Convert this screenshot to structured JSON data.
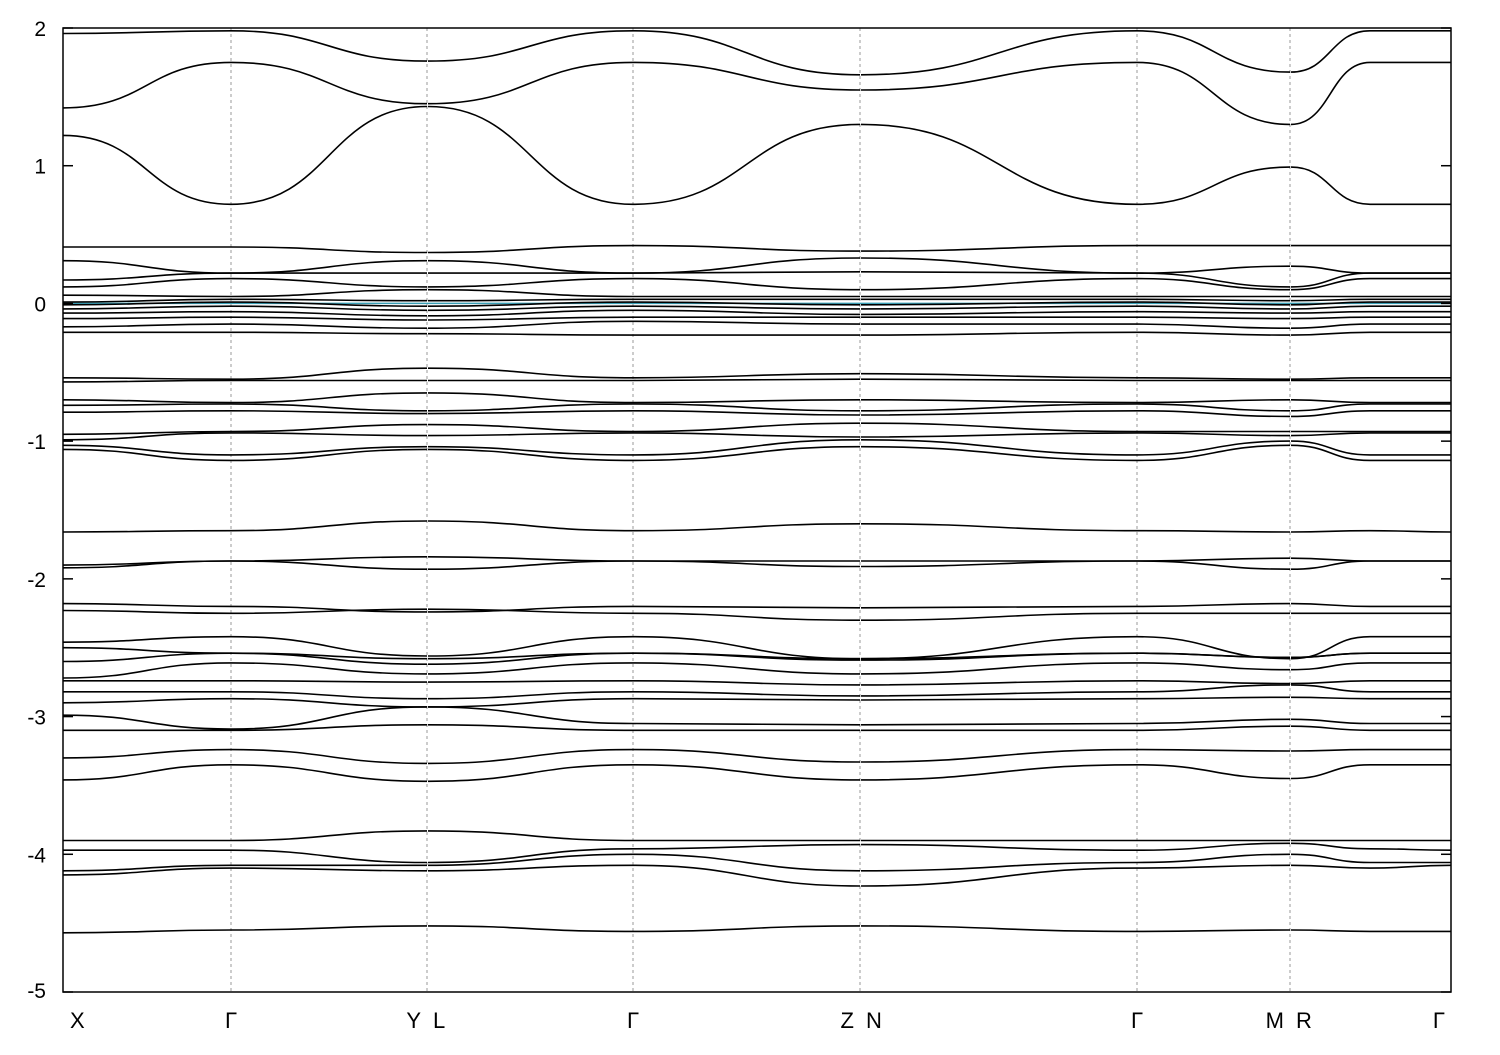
{
  "chart_data": {
    "type": "line",
    "title": "",
    "xlabel": "",
    "ylabel": "",
    "ylim": [
      -5,
      2
    ],
    "yticks": [
      2,
      1,
      0,
      -1,
      -2,
      -3,
      -4,
      -5
    ],
    "grid": "vertical dashed lines at high-symmetry points",
    "x_segments": [
      {
        "from": "X",
        "to": "Y",
        "x": [
          0,
          1
        ]
      },
      {
        "from": "L",
        "to": "Z",
        "x": [
          1,
          2
        ]
      },
      {
        "from": "N",
        "to": "M",
        "x": [
          2,
          3
        ]
      },
      {
        "from": "R",
        "to": "Γ",
        "x": [
          3,
          4
        ]
      }
    ],
    "gamma_positions": [
      0.5,
      1.5,
      2.5,
      4
    ],
    "high_symmetry_labels": [
      {
        "label": "X",
        "x": 0
      },
      {
        "label": "Γ",
        "x": 0.5
      },
      {
        "label": "Y",
        "x": 1
      },
      {
        "label": "L",
        "x": 1
      },
      {
        "label": "Γ",
        "x": 1.5
      },
      {
        "label": "Z",
        "x": 2
      },
      {
        "label": "N",
        "x": 2
      },
      {
        "label": "Γ",
        "x": 2.5
      },
      {
        "label": "M",
        "x": 3
      },
      {
        "label": "R",
        "x": 3
      },
      {
        "label": "Γ",
        "x": 4
      }
    ],
    "fermi_level": {
      "y": 0,
      "color": "#3a9fb5"
    },
    "bands": [
      {
        "name": "b1",
        "x": [
          0,
          0.5,
          1,
          1.5,
          2,
          2.5,
          3,
          3.5,
          4
        ],
        "y": [
          -4.57,
          -4.55,
          -4.52,
          -4.56,
          -4.52,
          -4.56,
          -4.55,
          -4.56,
          -4.56
        ]
      },
      {
        "name": "b2",
        "x": [
          0,
          0.5,
          1,
          1.5,
          2,
          2.5,
          3,
          3.5,
          4
        ],
        "y": [
          -4.15,
          -4.1,
          -4.12,
          -4.08,
          -4.23,
          -4.1,
          -4.08,
          -4.1,
          -4.08
        ]
      },
      {
        "name": "b3",
        "x": [
          0,
          0.5,
          1,
          1.5,
          2,
          2.5,
          3,
          3.5,
          4
        ],
        "y": [
          -4.12,
          -4.08,
          -4.08,
          -4.0,
          -4.12,
          -4.06,
          -4.0,
          -4.06,
          -4.06
        ]
      },
      {
        "name": "b4",
        "x": [
          0,
          0.5,
          1,
          1.5,
          2,
          2.5,
          3,
          3.5,
          4
        ],
        "y": [
          -3.97,
          -3.97,
          -4.06,
          -3.96,
          -3.93,
          -3.97,
          -3.92,
          -3.96,
          -3.97
        ]
      },
      {
        "name": "b5",
        "x": [
          0,
          0.5,
          1,
          1.5,
          2,
          2.5,
          3,
          3.5,
          4
        ],
        "y": [
          -3.9,
          -3.9,
          -3.83,
          -3.9,
          -3.9,
          -3.9,
          -3.9,
          -3.9,
          -3.9
        ]
      },
      {
        "name": "b6",
        "x": [
          0,
          0.5,
          1,
          1.5,
          2,
          2.5,
          3,
          3.5,
          4
        ],
        "y": [
          -3.46,
          -3.35,
          -3.47,
          -3.35,
          -3.46,
          -3.35,
          -3.45,
          -3.35,
          -3.35
        ]
      },
      {
        "name": "b7",
        "x": [
          0,
          0.5,
          1,
          1.5,
          2,
          2.5,
          3,
          3.5,
          4
        ],
        "y": [
          -3.3,
          -3.24,
          -3.34,
          -3.24,
          -3.33,
          -3.24,
          -3.25,
          -3.24,
          -3.24
        ]
      },
      {
        "name": "b8",
        "x": [
          0,
          0.5,
          1,
          1.5,
          2,
          2.5,
          3,
          3.5,
          4
        ],
        "y": [
          -3.1,
          -3.1,
          -3.06,
          -3.1,
          -3.1,
          -3.1,
          -3.07,
          -3.1,
          -3.1
        ]
      },
      {
        "name": "b9",
        "x": [
          0,
          0.5,
          1,
          1.5,
          2,
          2.5,
          3,
          3.5,
          4
        ],
        "y": [
          -2.99,
          -3.09,
          -2.93,
          -3.05,
          -3.06,
          -3.05,
          -3.02,
          -3.05,
          -3.05
        ]
      },
      {
        "name": "b10",
        "x": [
          0,
          0.5,
          1,
          1.5,
          2,
          2.5,
          3,
          3.5,
          4
        ],
        "y": [
          -2.9,
          -2.87,
          -2.93,
          -2.87,
          -2.88,
          -2.87,
          -2.86,
          -2.87,
          -2.87
        ]
      },
      {
        "name": "b11",
        "x": [
          0,
          0.5,
          1,
          1.5,
          2,
          2.5,
          3,
          3.5,
          4
        ],
        "y": [
          -2.82,
          -2.82,
          -2.87,
          -2.82,
          -2.85,
          -2.82,
          -2.77,
          -2.82,
          -2.82
        ]
      },
      {
        "name": "b12",
        "x": [
          0,
          0.5,
          1,
          1.5,
          2,
          2.5,
          3,
          3.5,
          4
        ],
        "y": [
          -2.74,
          -2.74,
          -2.75,
          -2.74,
          -2.77,
          -2.74,
          -2.76,
          -2.74,
          -2.74
        ]
      },
      {
        "name": "b13",
        "x": [
          0,
          0.5,
          1,
          1.5,
          2,
          2.5,
          3,
          3.5,
          4
        ],
        "y": [
          -2.72,
          -2.61,
          -2.69,
          -2.61,
          -2.69,
          -2.61,
          -2.66,
          -2.61,
          -2.61
        ]
      },
      {
        "name": "b14",
        "x": [
          0,
          0.5,
          1,
          1.5,
          2,
          2.5,
          3,
          3.5,
          4
        ],
        "y": [
          -2.6,
          -2.54,
          -2.62,
          -2.54,
          -2.58,
          -2.54,
          -2.57,
          -2.54,
          -2.54
        ]
      },
      {
        "name": "b15",
        "x": [
          0,
          0.5,
          1,
          1.5,
          2,
          2.5,
          3,
          3.5,
          4
        ],
        "y": [
          -2.5,
          -2.54,
          -2.58,
          -2.54,
          -2.59,
          -2.54,
          -2.57,
          -2.54,
          -2.54
        ]
      },
      {
        "name": "b16",
        "x": [
          0,
          0.5,
          1,
          1.5,
          2,
          2.5,
          3,
          3.5,
          4
        ],
        "y": [
          -2.46,
          -2.42,
          -2.56,
          -2.42,
          -2.58,
          -2.42,
          -2.58,
          -2.42,
          -2.42
        ]
      },
      {
        "name": "b17",
        "x": [
          0,
          0.5,
          1,
          1.5,
          2,
          2.5,
          3,
          3.5,
          4
        ],
        "y": [
          -2.23,
          -2.25,
          -2.22,
          -2.25,
          -2.3,
          -2.25,
          -2.25,
          -2.25,
          -2.25
        ]
      },
      {
        "name": "b18",
        "x": [
          0,
          0.5,
          1,
          1.5,
          2,
          2.5,
          3,
          3.5,
          4
        ],
        "y": [
          -2.18,
          -2.2,
          -2.24,
          -2.2,
          -2.21,
          -2.2,
          -2.18,
          -2.2,
          -2.2
        ]
      },
      {
        "name": "b19",
        "x": [
          0,
          0.5,
          1,
          1.5,
          2,
          2.5,
          3,
          3.5,
          4
        ],
        "y": [
          -1.92,
          -1.87,
          -1.93,
          -1.87,
          -1.91,
          -1.87,
          -1.93,
          -1.87,
          -1.87
        ]
      },
      {
        "name": "b20",
        "x": [
          0,
          0.5,
          1,
          1.5,
          2,
          2.5,
          3,
          3.5,
          4
        ],
        "y": [
          -1.9,
          -1.87,
          -1.84,
          -1.87,
          -1.87,
          -1.87,
          -1.85,
          -1.87,
          -1.87
        ]
      },
      {
        "name": "b21",
        "x": [
          0,
          0.5,
          1,
          1.5,
          2,
          2.5,
          3,
          3.5,
          4
        ],
        "y": [
          -1.66,
          -1.65,
          -1.58,
          -1.65,
          -1.6,
          -1.65,
          -1.66,
          -1.65,
          -1.66
        ]
      },
      {
        "name": "b22",
        "x": [
          0,
          0.5,
          1,
          1.5,
          2,
          2.5,
          3,
          3.5,
          4
        ],
        "y": [
          -1.06,
          -1.14,
          -1.06,
          -1.14,
          -1.04,
          -1.14,
          -1.03,
          -1.14,
          -1.14
        ]
      },
      {
        "name": "b23",
        "x": [
          0,
          0.5,
          1,
          1.5,
          2,
          2.5,
          3,
          3.5,
          4
        ],
        "y": [
          -1.03,
          -1.1,
          -1.04,
          -1.1,
          -0.99,
          -1.1,
          -1.0,
          -1.1,
          -1.1
        ]
      },
      {
        "name": "b24",
        "x": [
          0,
          0.5,
          1,
          1.5,
          2,
          2.5,
          3,
          3.5,
          4
        ],
        "y": [
          -0.99,
          -0.94,
          -0.96,
          -0.94,
          -0.97,
          -0.94,
          -0.96,
          -0.94,
          -0.94
        ]
      },
      {
        "name": "b25",
        "x": [
          0,
          0.5,
          1,
          1.5,
          2,
          2.5,
          3,
          3.5,
          4
        ],
        "y": [
          -0.95,
          -0.93,
          -0.88,
          -0.93,
          -0.87,
          -0.93,
          -0.93,
          -0.93,
          -0.93
        ]
      },
      {
        "name": "b26",
        "x": [
          0,
          0.5,
          1,
          1.5,
          2,
          2.5,
          3,
          3.5,
          4
        ],
        "y": [
          -0.79,
          -0.78,
          -0.8,
          -0.78,
          -0.81,
          -0.78,
          -0.82,
          -0.78,
          -0.78
        ]
      },
      {
        "name": "b27",
        "x": [
          0,
          0.5,
          1,
          1.5,
          2,
          2.5,
          3,
          3.5,
          4
        ],
        "y": [
          -0.74,
          -0.73,
          -0.78,
          -0.73,
          -0.78,
          -0.73,
          -0.78,
          -0.73,
          -0.73
        ]
      },
      {
        "name": "b28",
        "x": [
          0,
          0.5,
          1,
          1.5,
          2,
          2.5,
          3,
          3.5,
          4
        ],
        "y": [
          -0.7,
          -0.72,
          -0.65,
          -0.72,
          -0.7,
          -0.72,
          -0.7,
          -0.72,
          -0.72
        ]
      },
      {
        "name": "b29",
        "x": [
          0,
          0.5,
          1,
          1.5,
          2,
          2.5,
          3,
          3.5,
          4
        ],
        "y": [
          -0.57,
          -0.56,
          -0.56,
          -0.56,
          -0.55,
          -0.56,
          -0.56,
          -0.56,
          -0.56
        ]
      },
      {
        "name": "b30",
        "x": [
          0,
          0.5,
          1,
          1.5,
          2,
          2.5,
          3,
          3.5,
          4
        ],
        "y": [
          -0.54,
          -0.55,
          -0.47,
          -0.54,
          -0.51,
          -0.54,
          -0.55,
          -0.54,
          -0.54
        ]
      },
      {
        "name": "b31",
        "x": [
          0,
          0.5,
          1,
          1.5,
          2,
          2.5,
          3,
          3.5,
          4
        ],
        "y": [
          -0.21,
          -0.21,
          -0.22,
          -0.23,
          -0.23,
          -0.21,
          -0.23,
          -0.21,
          -0.21
        ]
      },
      {
        "name": "b32",
        "x": [
          0,
          0.5,
          1,
          1.5,
          2,
          2.5,
          3,
          3.5,
          4
        ],
        "y": [
          -0.17,
          -0.15,
          -0.18,
          -0.13,
          -0.15,
          -0.15,
          -0.18,
          -0.15,
          -0.15
        ]
      },
      {
        "name": "b33",
        "x": [
          0,
          0.5,
          1,
          1.5,
          2,
          2.5,
          3,
          3.5,
          4
        ],
        "y": [
          -0.11,
          -0.1,
          -0.12,
          -0.1,
          -0.1,
          -0.1,
          -0.11,
          -0.1,
          -0.1
        ]
      },
      {
        "name": "b34",
        "x": [
          0,
          0.5,
          1,
          1.5,
          2,
          2.5,
          3,
          3.5,
          4
        ],
        "y": [
          -0.07,
          -0.06,
          -0.09,
          -0.05,
          -0.08,
          -0.06,
          -0.07,
          -0.06,
          -0.06
        ]
      },
      {
        "name": "b35",
        "x": [
          0,
          0.5,
          1,
          1.5,
          2,
          2.5,
          3,
          3.5,
          4
        ],
        "y": [
          -0.04,
          -0.02,
          -0.05,
          -0.02,
          -0.04,
          -0.02,
          -0.04,
          -0.02,
          -0.02
        ]
      },
      {
        "name": "b36",
        "x": [
          0,
          0.5,
          1,
          1.5,
          2,
          2.5,
          3,
          3.5,
          4
        ],
        "y": [
          -0.01,
          0.01,
          -0.02,
          0.01,
          -0.01,
          0.01,
          -0.01,
          0.01,
          0.01
        ]
      },
      {
        "name": "b37",
        "x": [
          0,
          0.5,
          1,
          1.5,
          2,
          2.5,
          3,
          3.5,
          4
        ],
        "y": [
          0.01,
          0.03,
          0.02,
          0.03,
          0.03,
          0.03,
          0.02,
          0.03,
          0.03
        ]
      },
      {
        "name": "b38",
        "x": [
          0,
          0.5,
          1,
          1.5,
          2,
          2.5,
          3,
          3.5,
          4
        ],
        "y": [
          0.06,
          0.05,
          0.1,
          0.05,
          0.05,
          0.05,
          0.05,
          0.05,
          0.05
        ]
      },
      {
        "name": "b39",
        "x": [
          0,
          0.5,
          1,
          1.5,
          2,
          2.5,
          3,
          3.5,
          4
        ],
        "y": [
          0.12,
          0.18,
          0.12,
          0.18,
          0.1,
          0.18,
          0.1,
          0.18,
          0.18
        ]
      },
      {
        "name": "b40",
        "x": [
          0,
          0.5,
          1,
          1.5,
          2,
          2.5,
          3,
          3.5,
          4
        ],
        "y": [
          0.17,
          0.22,
          0.22,
          0.22,
          0.23,
          0.22,
          0.12,
          0.22,
          0.22
        ]
      },
      {
        "name": "b41",
        "x": [
          0,
          0.5,
          1,
          1.5,
          2,
          2.5,
          3,
          3.5,
          4
        ],
        "y": [
          0.31,
          0.22,
          0.31,
          0.22,
          0.33,
          0.22,
          0.27,
          0.22,
          0.22
        ]
      },
      {
        "name": "b42",
        "x": [
          0,
          0.5,
          1,
          1.5,
          2,
          2.5,
          3,
          3.5,
          4
        ],
        "y": [
          0.41,
          0.41,
          0.37,
          0.42,
          0.38,
          0.42,
          0.42,
          0.42,
          0.42
        ]
      },
      {
        "name": "b43",
        "x": [
          0,
          0.5,
          1,
          1.5,
          2,
          2.5,
          3,
          3.5,
          4
        ],
        "y": [
          1.22,
          0.72,
          1.43,
          0.72,
          1.3,
          0.72,
          0.99,
          0.72,
          0.72
        ]
      },
      {
        "name": "b44",
        "x": [
          0,
          0.5,
          1,
          1.5,
          2,
          2.5,
          3,
          3.5,
          4
        ],
        "y": [
          1.42,
          1.75,
          1.45,
          1.75,
          1.55,
          1.75,
          1.3,
          1.75,
          1.75
        ]
      },
      {
        "name": "b45",
        "x": [
          0,
          0.5,
          1,
          1.5,
          2,
          2.5,
          3,
          3.5,
          4
        ],
        "y": [
          1.96,
          1.98,
          1.76,
          1.98,
          1.66,
          1.98,
          1.68,
          1.98,
          1.98
        ]
      }
    ]
  }
}
